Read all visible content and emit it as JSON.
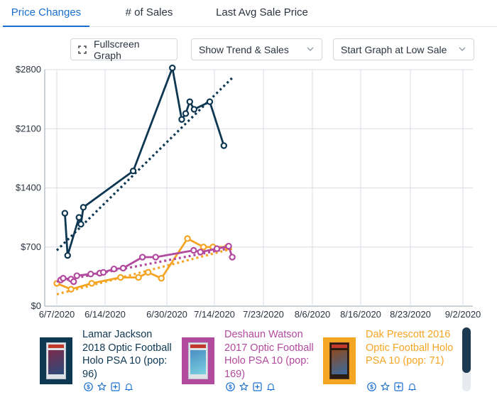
{
  "tabs": [
    {
      "label": "Price Changes",
      "active": true
    },
    {
      "label": "# of Sales",
      "active": false
    },
    {
      "label": "Last Avg Sale Price",
      "active": false
    }
  ],
  "controls": {
    "fullscreen_label": "Fullscreen Graph",
    "trend_select": "Show Trend & Sales",
    "start_select": "Start Graph at Low Sale"
  },
  "colors": {
    "navy": "#0e3752",
    "magenta": "#b24a9e",
    "orange": "#f5a524",
    "accent": "#1a6fcf"
  },
  "chart_data": {
    "type": "line",
    "y_ticks": [
      "$0",
      "$700",
      "$1400",
      "$2100",
      "$2800"
    ],
    "y_tick_values": [
      0,
      700,
      1400,
      2100,
      2800
    ],
    "x_ticks": [
      "6/7/2020",
      "6/14/2020",
      "6/30/2020",
      "7/14/2020",
      "7/23/2020",
      "8/6/2020",
      "8/16/2020",
      "8/23/2020",
      "9/2/2020"
    ],
    "ylim": [
      0,
      2800
    ],
    "grid": true,
    "series": [
      {
        "name": "Lamar Jackson 2018 Optic Football Holo PSA 10 (pop: 96)",
        "color": "navy",
        "points": [
          [
            0.167,
            1100
          ],
          [
            0.224,
            600
          ],
          [
            0.46,
            1050
          ],
          [
            0.5,
            970
          ],
          [
            0.55,
            1170
          ],
          [
            1.455,
            1600
          ],
          [
            2.116,
            2820
          ],
          [
            2.313,
            2210
          ],
          [
            2.396,
            2280
          ],
          [
            2.482,
            2420
          ],
          [
            2.573,
            2330
          ],
          [
            2.902,
            2420
          ],
          [
            3.193,
            1900
          ]
        ],
        "trend": [
          [
            0.0,
            660
          ],
          [
            3.36,
            2700
          ]
        ]
      },
      {
        "name": "Deshaun Watson 2017 Optic Football Holo PSA 10 (pop: 169)",
        "color": "magenta",
        "points": [
          [
            0.081,
            310
          ],
          [
            0.132,
            330
          ],
          [
            0.295,
            320
          ],
          [
            0.349,
            290
          ],
          [
            0.416,
            360
          ],
          [
            0.702,
            380
          ],
          [
            0.89,
            390
          ],
          [
            0.965,
            400
          ],
          [
            1.144,
            440
          ],
          [
            1.293,
            450
          ],
          [
            1.605,
            580
          ],
          [
            1.819,
            580
          ],
          [
            2.564,
            660
          ],
          [
            2.705,
            640
          ],
          [
            3.051,
            680
          ],
          [
            3.29,
            710
          ],
          [
            3.364,
            580
          ]
        ],
        "trend": [
          [
            0.0,
            290
          ],
          [
            3.36,
            690
          ]
        ]
      },
      {
        "name": "Dak Prescott 2016 Optic Football Holo PSA 10 (pop: 71)",
        "color": "orange",
        "points": [
          [
            0.0,
            270
          ],
          [
            0.295,
            200
          ],
          [
            0.724,
            270
          ],
          [
            1.251,
            340
          ],
          [
            1.541,
            340
          ],
          [
            1.697,
            400
          ],
          [
            1.911,
            330
          ],
          [
            2.434,
            800
          ],
          [
            2.77,
            700
          ],
          [
            2.969,
            700
          ],
          [
            3.264,
            700
          ]
        ],
        "trend": [
          [
            0.0,
            140
          ],
          [
            3.36,
            680
          ]
        ]
      }
    ]
  },
  "cards": [
    {
      "title_lines": [
        "Lamar Jackson",
        "2018 Optic Football",
        "Holo PSA 10 (pop:",
        "96)"
      ],
      "color": "#0e3752"
    },
    {
      "title_lines": [
        "Deshaun Watson",
        "2017 Optic Football",
        "Holo PSA 10 (pop:",
        "169)"
      ],
      "color": "#b24a9e"
    },
    {
      "title_lines": [
        "Dak Prescott 2016",
        "Optic Football Holo",
        "PSA 10 (pop: 71)"
      ],
      "color": "#f5a524"
    }
  ],
  "card_icons": [
    "dollar-icon",
    "star-icon",
    "plus-square-icon",
    "bell-icon"
  ]
}
